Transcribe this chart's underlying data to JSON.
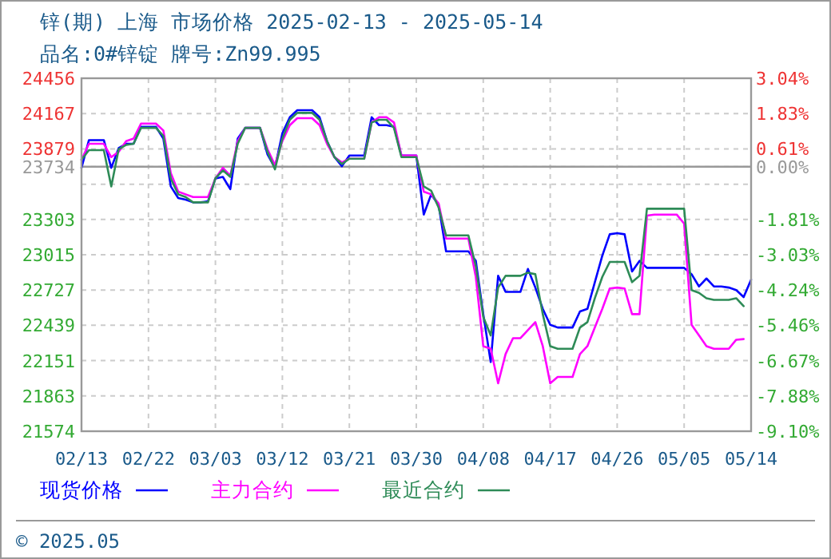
{
  "chart_data": {
    "type": "line",
    "title": "锌(期) 上海 市场价格 2025-02-13 - 2025-05-14",
    "subtitle": "品名:0#锌锭 牌号:Zn99.995",
    "annotations": [
      "© 2025.05"
    ],
    "x": [
      "--02-13",
      "--02-14",
      "--02-15",
      "--02-16",
      "--02-17",
      "--02-18",
      "--02-19",
      "--02-20",
      "--02-21",
      "--02-22",
      "--02-23",
      "--02-24",
      "--02-25",
      "--02-26",
      "--02-27",
      "--02-28",
      "--03-01",
      "--03-02",
      "--03-03",
      "--03-04",
      "--03-05",
      "--03-06",
      "--03-07",
      "--03-08",
      "--03-09",
      "--03-10",
      "--03-11",
      "--03-12",
      "--03-13",
      "--03-14",
      "--03-15",
      "--03-16",
      "--03-17",
      "--03-18",
      "--03-19",
      "--03-20",
      "--03-21",
      "--03-22",
      "--03-23",
      "--03-24",
      "--03-25",
      "--03-26",
      "--03-27",
      "--03-28",
      "--03-29",
      "--03-30",
      "--03-31",
      "--04-01",
      "--04-02",
      "--04-03",
      "--04-04",
      "--04-05",
      "--04-06",
      "--04-07",
      "--04-08",
      "--04-09",
      "--04-10",
      "--04-11",
      "--04-12",
      "--04-13",
      "--04-14",
      "--04-15",
      "--04-16",
      "--04-17",
      "--04-18",
      "--04-19",
      "--04-20",
      "--04-21",
      "--04-22",
      "--04-23",
      "--04-24",
      "--04-25",
      "--04-26",
      "--04-27",
      "--04-28",
      "--04-29",
      "--04-30",
      "--05-01",
      "--05-02",
      "--05-03",
      "--05-04",
      "--05-05",
      "--05-06",
      "--05-07",
      "--05-08",
      "--05-09",
      "--05-10",
      "--05-11",
      "--05-12",
      "--05-13",
      "--05-14"
    ],
    "series": [
      {
        "name": "现货价格",
        "color": "#0000ff",
        "values": [
          23725,
          23951,
          23951,
          23951,
          23725,
          23886,
          23921,
          23921,
          24060,
          24060,
          24060,
          23964,
          23573,
          23478,
          23465,
          23443,
          23443,
          23451,
          23638,
          23651,
          23551,
          23964,
          24051,
          24051,
          24051,
          23834,
          23725,
          24008,
          24138,
          24195,
          24195,
          24195,
          24138,
          23943,
          23812,
          23738,
          23825,
          23825,
          23825,
          24138,
          24073,
          24073,
          24060,
          23825,
          23825,
          23825,
          23343,
          23508,
          23421,
          23043,
          23043,
          23043,
          23043,
          22965,
          22530,
          22139,
          22843,
          22712,
          22712,
          22712,
          22899,
          22747,
          22573,
          22443,
          22421,
          22421,
          22421,
          22552,
          22573,
          22791,
          23008,
          23182,
          23191,
          23182,
          22878,
          22965,
          22908,
          22908,
          22908,
          22908,
          22908,
          22908,
          22856,
          22756,
          22821,
          22756,
          22756,
          22747,
          22726,
          22669,
          22812
        ]
      },
      {
        "name": "主力合约",
        "color": "#ff00ff",
        "values": [
          23791,
          23921,
          23921,
          23921,
          23812,
          23856,
          23943,
          23964,
          24086,
          24086,
          24086,
          24030,
          23682,
          23530,
          23508,
          23486,
          23486,
          23486,
          23638,
          23725,
          23660,
          23943,
          24051,
          24051,
          24051,
          23877,
          23747,
          23943,
          24073,
          24130,
          24130,
          24130,
          24073,
          23921,
          23812,
          23769,
          23799,
          23799,
          23799,
          24095,
          24138,
          24138,
          24095,
          23825,
          23825,
          23825,
          23530,
          23508,
          23434,
          23147,
          23147,
          23147,
          23147,
          22834,
          22269,
          22247,
          21965,
          22204,
          22334,
          22334,
          22399,
          22465,
          22269,
          21965,
          22017,
          22017,
          22017,
          22204,
          22269,
          22421,
          22573,
          22739,
          22747,
          22739,
          22530,
          22530,
          23334,
          23343,
          23343,
          23343,
          23343,
          23269,
          22443,
          22356,
          22269,
          22247,
          22247,
          22247,
          22321,
          22326,
          null
        ]
      },
      {
        "name": "最近合约",
        "color": "#2e8b57",
        "values": [
          23791,
          23869,
          23869,
          23869,
          23573,
          23877,
          23912,
          23921,
          24051,
          24051,
          24051,
          23986,
          23638,
          23508,
          23486,
          23443,
          23443,
          23443,
          23638,
          23704,
          23651,
          23921,
          24051,
          24051,
          24051,
          23856,
          23712,
          23964,
          24117,
          24173,
          24173,
          24173,
          24117,
          23943,
          23812,
          23756,
          23799,
          23799,
          23799,
          24095,
          24117,
          24117,
          24051,
          23812,
          23812,
          23812,
          23573,
          23538,
          23399,
          23173,
          23173,
          23173,
          23173,
          22921,
          22508,
          22356,
          22747,
          22843,
          22843,
          22843,
          22869,
          22856,
          22530,
          22269,
          22247,
          22247,
          22247,
          22421,
          22465,
          22660,
          22834,
          22956,
          22956,
          22956,
          22791,
          22843,
          23391,
          23391,
          23391,
          23391,
          23391,
          23391,
          22726,
          22704,
          22660,
          22647,
          22647,
          22647,
          22660,
          22595,
          null
        ]
      }
    ],
    "xlim": [
      "--02-13",
      "--05-14"
    ],
    "xticks": [
      {
        "value": "--02-13",
        "label": "02/13"
      },
      {
        "value": "--02-22",
        "label": "02/22"
      },
      {
        "value": "--03-03",
        "label": "03/03"
      },
      {
        "value": "--03-12",
        "label": "03/12"
      },
      {
        "value": "--03-21",
        "label": "03/21"
      },
      {
        "value": "--03-30",
        "label": "03/30"
      },
      {
        "value": "--04-08",
        "label": "04/08"
      },
      {
        "value": "--04-17",
        "label": "04/17"
      },
      {
        "value": "--04-26",
        "label": "04/26"
      },
      {
        "value": "--05-05",
        "label": "05/05"
      },
      {
        "value": "--05-14",
        "label": "05/14"
      }
    ],
    "ylim": [
      21574,
      24456
    ],
    "yticks": [
      24456,
      24167,
      23879,
      23734,
      {
        "value": 23591,
        "label": null
      },
      23303,
      23015,
      22727,
      22439,
      22151,
      21863,
      21574
    ],
    "y2lim": [
      -9.1,
      3.04
    ],
    "y2ticks": [
      {
        "value": 3.04,
        "label": "3.04%"
      },
      {
        "value": 1.83,
        "label": "1.83%"
      },
      {
        "value": 0.61,
        "label": "0.61%"
      },
      {
        "value": 0,
        "label": "0.00%"
      },
      {
        "value": -1.81,
        "label": "-1.81%"
      },
      {
        "value": -3.03,
        "label": "-3.03%"
      },
      {
        "value": -4.24,
        "label": "-4.24%"
      },
      {
        "value": -5.46,
        "label": "-5.46%"
      },
      {
        "value": -6.67,
        "label": "-6.67%"
      },
      {
        "value": -7.88,
        "label": "-7.88%"
      },
      {
        "value": -9.1,
        "label": "-9.10%"
      }
    ],
    "ref_lines": [
      {
        "axis": "y",
        "value": 23734,
        "color": "#999999",
        "line_style": "solid"
      }
    ],
    "grid": true,
    "legend": "bottom",
    "line_style": "solid",
    "marker": "none"
  }
}
